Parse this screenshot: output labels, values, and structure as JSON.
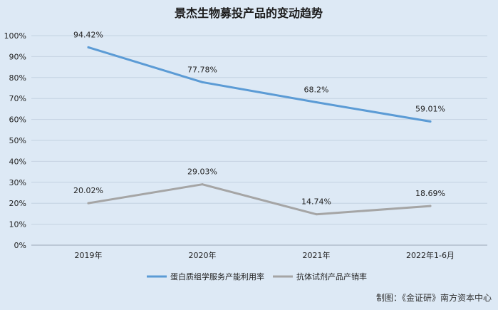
{
  "chart_data": {
    "type": "line",
    "title": "景杰生物募投产品的变动趋势",
    "categories": [
      "2019年",
      "2020年",
      "2021年",
      "2022年1-6月"
    ],
    "ylim": [
      0,
      100
    ],
    "yticks": [
      "0%",
      "10%",
      "20%",
      "30%",
      "40%",
      "50%",
      "60%",
      "70%",
      "80%",
      "90%",
      "100%"
    ],
    "grid": true,
    "legend_position": "bottom",
    "series": [
      {
        "name": "蛋白质组学服务产能利用率",
        "color": "#5b9bd5",
        "values": [
          94.42,
          77.78,
          68.2,
          59.01
        ],
        "labels": [
          "94.42%",
          "77.78%",
          "68.2%",
          "59.01%"
        ]
      },
      {
        "name": "抗体试剂产品产销率",
        "color": "#a5a5a5",
        "values": [
          20.02,
          29.03,
          14.74,
          18.69
        ],
        "labels": [
          "20.02%",
          "29.03%",
          "14.74%",
          "18.69%"
        ]
      }
    ]
  },
  "source_note": "制图：《金证研》南方资本中心"
}
